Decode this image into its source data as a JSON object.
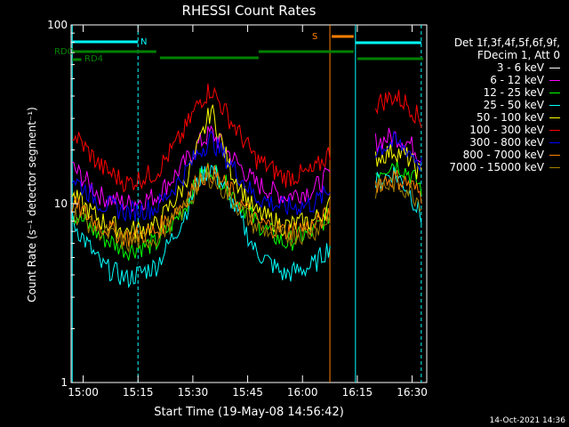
{
  "chart_data": {
    "type": "line",
    "title": "RHESSI Count Rates",
    "xlabel": "Start Time (19-May-08 14:56:42)",
    "ylabel": "Count Rate (s⁻¹ detector segment⁻¹)",
    "yscale": "log",
    "ylim": [
      1,
      100
    ],
    "xlim": [
      "14:56:42",
      "16:34:00"
    ],
    "x_ticks": [
      "15:00",
      "15:15",
      "15:30",
      "15:45",
      "16:00",
      "16:15",
      "16:30"
    ],
    "y_ticks": [
      "1",
      "10",
      "100"
    ],
    "legend_header": [
      "Det 1f,3f,4f,5f,6f,9f,",
      "FDecim 1, Att 0"
    ],
    "legend_position": "right",
    "series": [
      {
        "name": "3 - 6 keV",
        "color": "#000000",
        "x": [
          "14:57",
          "15:05",
          "15:12",
          "15:20",
          "15:27",
          "15:32",
          "15:35",
          "15:40",
          "15:47",
          "15:55",
          "16:03",
          "16:08",
          "16:14",
          "16:20",
          "16:25",
          "16:29",
          "16:33"
        ],
        "values": [
          10,
          6,
          4.5,
          5,
          8,
          14,
          16,
          12,
          7,
          5,
          6,
          8,
          null,
          17,
          19,
          16,
          12
        ]
      },
      {
        "name": "6 - 12 keV",
        "color": "#ff00ff",
        "x": [
          "14:57",
          "15:05",
          "15:12",
          "15:20",
          "15:27",
          "15:32",
          "15:35",
          "15:40",
          "15:47",
          "15:55",
          "16:03",
          "16:08",
          "16:14",
          "16:20",
          "16:25",
          "16:29",
          "16:33"
        ],
        "values": [
          16,
          11,
          10,
          11,
          16,
          22,
          25,
          19,
          13,
          11,
          12,
          15,
          null,
          22,
          24,
          22,
          18
        ]
      },
      {
        "name": "12 - 25 keV",
        "color": "#00ff00",
        "x": [
          "14:57",
          "15:05",
          "15:12",
          "15:20",
          "15:27",
          "15:32",
          "15:35",
          "15:40",
          "15:47",
          "15:55",
          "16:03",
          "16:08",
          "16:14",
          "16:20",
          "16:25",
          "16:29",
          "16:33"
        ],
        "values": [
          9,
          6.5,
          5.5,
          6,
          9,
          14,
          16,
          12,
          8,
          6,
          7,
          9,
          null,
          15,
          17,
          15,
          12
        ]
      },
      {
        "name": "25 - 50 keV",
        "color": "#00ffff",
        "x": [
          "14:57",
          "15:05",
          "15:12",
          "15:20",
          "15:27",
          "15:32",
          "15:35",
          "15:40",
          "15:47",
          "15:55",
          "16:03",
          "16:08",
          "16:14",
          "16:20",
          "16:25",
          "16:29",
          "16:33"
        ],
        "values": [
          8,
          4.5,
          3.8,
          4.5,
          8,
          14,
          16,
          11,
          5.5,
          4,
          4.5,
          6,
          null,
          13,
          15,
          12,
          8
        ]
      },
      {
        "name": "50 - 100 keV",
        "color": "#ffff00",
        "x": [
          "14:57",
          "15:05",
          "15:12",
          "15:20",
          "15:27",
          "15:32",
          "15:35",
          "15:40",
          "15:47",
          "15:55",
          "16:03",
          "16:08",
          "16:14",
          "16:20",
          "16:25",
          "16:29",
          "16:33"
        ],
        "values": [
          11,
          8,
          7,
          7.5,
          12,
          22,
          34,
          16,
          9,
          7.5,
          8,
          10,
          null,
          18,
          20,
          18,
          14
        ]
      },
      {
        "name": "100 - 300 keV",
        "color": "#ff0000",
        "x": [
          "14:57",
          "15:05",
          "15:12",
          "15:20",
          "15:27",
          "15:32",
          "15:35",
          "15:40",
          "15:47",
          "15:55",
          "16:03",
          "16:08",
          "16:14",
          "16:20",
          "16:25",
          "16:29",
          "16:33"
        ],
        "values": [
          25,
          16,
          13,
          15,
          24,
          38,
          44,
          30,
          18,
          14,
          15,
          20,
          null,
          36,
          40,
          36,
          28
        ]
      },
      {
        "name": "300 - 800 keV",
        "color": "#0000ff",
        "x": [
          "14:57",
          "15:05",
          "15:12",
          "15:20",
          "15:27",
          "15:32",
          "15:35",
          "15:40",
          "15:47",
          "15:55",
          "16:03",
          "16:08",
          "16:14",
          "16:20",
          "16:25",
          "16:29",
          "16:33"
        ],
        "values": [
          14,
          10,
          9,
          9.5,
          14,
          20,
          23,
          17,
          11,
          9.5,
          10,
          12,
          null,
          20,
          22,
          20,
          16
        ]
      },
      {
        "name": "800 - 7000 keV",
        "color": "#ff8000",
        "x": [
          "14:57",
          "15:05",
          "15:12",
          "15:20",
          "15:27",
          "15:32",
          "15:35",
          "15:40",
          "15:47",
          "15:55",
          "16:03",
          "16:08",
          "16:14",
          "16:20",
          "16:25",
          "16:29",
          "16:33"
        ],
        "values": [
          10,
          7.5,
          6.5,
          7,
          10,
          14,
          15,
          12,
          8,
          7,
          7.5,
          9,
          null,
          13,
          14,
          13,
          11
        ]
      },
      {
        "name": "7000 - 15000 keV",
        "color": "#a08000",
        "x": [
          "14:57",
          "15:05",
          "15:12",
          "15:20",
          "15:27",
          "15:32",
          "15:35",
          "15:40",
          "15:47",
          "15:55",
          "16:03",
          "16:08",
          "16:14",
          "16:20",
          "16:25",
          "16:29",
          "16:33"
        ],
        "values": [
          9,
          7,
          6,
          6.5,
          9,
          13,
          14,
          11,
          7.5,
          6.5,
          7,
          8.5,
          null,
          12,
          13,
          12,
          10
        ]
      }
    ],
    "annotations": [
      {
        "label": "N",
        "color": "#00ffff"
      },
      {
        "label": "S",
        "color": "#ff8000"
      },
      {
        "label": "RDO",
        "color": "#008000"
      },
      {
        "label": "RD4",
        "color": "#008000"
      }
    ],
    "timestamp": "14-Oct-2021 14:36"
  }
}
